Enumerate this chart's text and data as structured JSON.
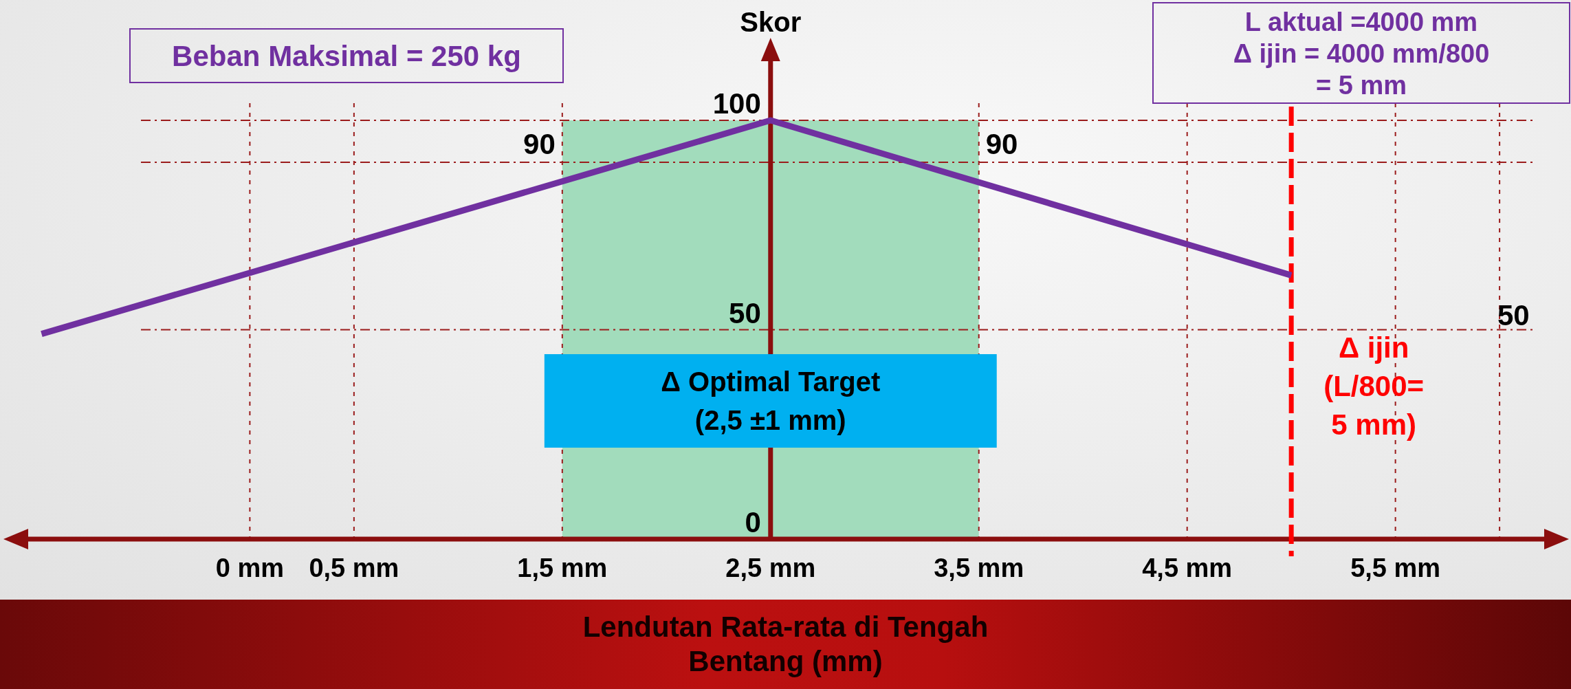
{
  "chart_data": {
    "type": "line",
    "xlabel": "Lendutan Rata-rata di Tengah\nBentang (mm)",
    "ylabel": "Skor",
    "annotations": [
      "Beban Maksimal = 250 kg",
      "L aktual =4000 mm\nΔ ijin = 4000 mm/800\n= 5 mm",
      "50",
      {
        "text": "90",
        "x": 1.5,
        "y": 90
      },
      {
        "text": "90",
        "x": 3.5,
        "y": 90
      }
    ],
    "x": [
      -1,
      2.5,
      5
    ],
    "values": [
      49,
      100,
      63
    ],
    "color": "#7030a0",
    "xlim": [
      -1.15,
      6.3
    ],
    "xticks": [
      {
        "value": 0,
        "label": "0 mm"
      },
      {
        "value": 0.5,
        "label": "0,5 mm"
      },
      {
        "value": 1.5,
        "label": "1,5 mm"
      },
      {
        "value": 2.5,
        "label": "2,5 mm"
      },
      {
        "value": 3.5,
        "label": "3,5 mm"
      },
      {
        "value": 4.5,
        "label": "4,5 mm"
      },
      {
        "value": 5.5,
        "label": "5,5 mm"
      },
      {
        "value": 6,
        "label": null
      }
    ],
    "ylim": [
      0,
      100
    ],
    "yticks": [
      0,
      50,
      {
        "value": 90,
        "label": null
      },
      100
    ],
    "grid": true,
    "bands": [
      {
        "axis": "x",
        "from": 1.5,
        "to": 3.5,
        "label": "Δ Optimal Target\n(2,5 ±1 mm)",
        "color": "#a2dcbc"
      }
    ],
    "ref_lines": [
      {
        "axis": "x",
        "value": 5,
        "label": "Δ ijin\n(L/800=\n5 mm)",
        "color": "#ff0000",
        "line_style": "dashed"
      }
    ]
  }
}
